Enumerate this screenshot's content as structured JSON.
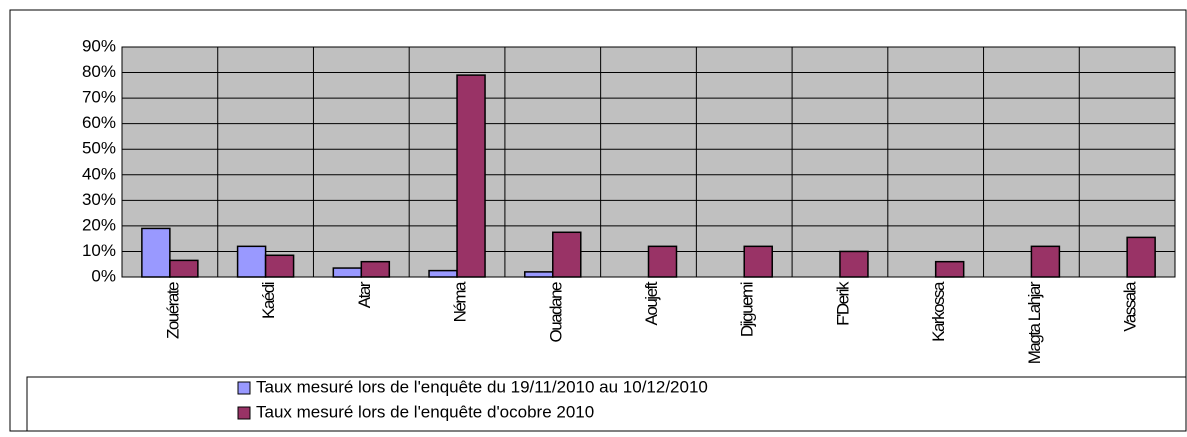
{
  "chart_data": {
    "type": "bar",
    "categories": [
      "Zouérate",
      "Kaédi",
      "Atar",
      "Néma",
      "Ouadane",
      "Aoujeft",
      "Djiguemi",
      "F'Derik",
      "Karkossa",
      "Magta Lahjar",
      "Vassala"
    ],
    "series": [
      {
        "name": "Taux mesuré lors de l'enquête du 19/11/2010 au 10/12/2010",
        "color": "#9999ff",
        "values": [
          19,
          12,
          3.5,
          2.5,
          2,
          null,
          null,
          null,
          null,
          null,
          null
        ]
      },
      {
        "name": "Taux mesuré lors de l'enquête d'ocobre 2010",
        "color": "#993366",
        "values": [
          6.5,
          8.5,
          6,
          79,
          17.5,
          12,
          12,
          10,
          6,
          12,
          15.5
        ]
      }
    ],
    "ylim": [
      0,
      90
    ],
    "yticks": [
      {
        "value": 0,
        "label": "0%"
      },
      {
        "value": 10,
        "label": "10%"
      },
      {
        "value": 20,
        "label": "20%"
      },
      {
        "value": 30,
        "label": "30%"
      },
      {
        "value": 40,
        "label": "40%"
      },
      {
        "value": 50,
        "label": "50%"
      },
      {
        "value": 60,
        "label": "60%"
      },
      {
        "value": 70,
        "label": "70%"
      },
      {
        "value": 80,
        "label": "80%"
      },
      {
        "value": 90,
        "label": "90%"
      }
    ],
    "grid": true,
    "legend": "bottom"
  }
}
